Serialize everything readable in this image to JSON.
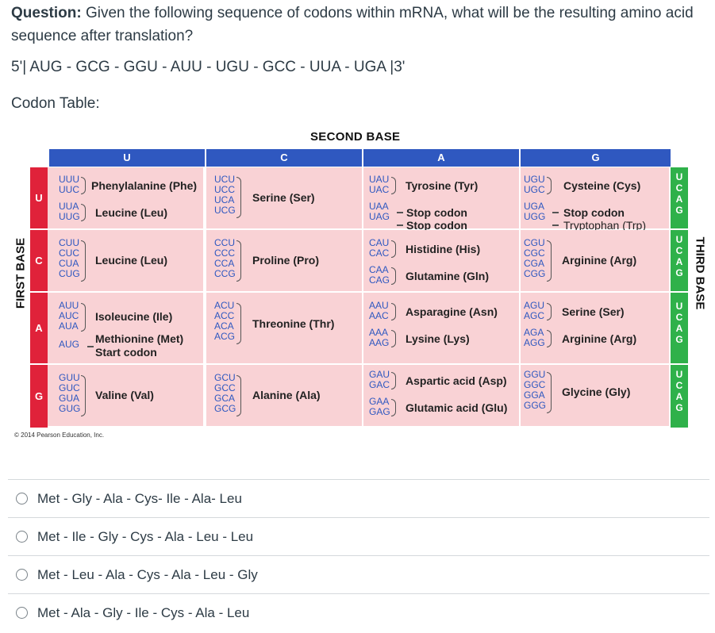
{
  "question": {
    "label": "Question:",
    "text": "Given the following sequence of codons within mRNA, what will be the resulting amino acid sequence after translation?",
    "sequence": "5'| AUG - GCG - GGU - AUU - UGU - GCC - UUA - UGA |3'",
    "codon_table_label": "Codon Table:"
  },
  "table": {
    "second_base_label": "SECOND BASE",
    "first_base_label": "FIRST BASE",
    "third_base_label": "THIRD BASE",
    "copyright": "© 2014 Pearson Education, Inc.",
    "columns": [
      "U",
      "C",
      "A",
      "G"
    ],
    "rows": [
      "U",
      "C",
      "A",
      "G"
    ],
    "third_letters": [
      "U",
      "C",
      "A",
      "G"
    ],
    "cells": {
      "UU": {
        "codons": [
          "UUU",
          "UUC",
          "UUA",
          "UUG"
        ],
        "aa1": "Phenylalanine (Phe)",
        "aa2": "Leucine (Leu)"
      },
      "UC": {
        "codons": [
          "UCU",
          "UCC",
          "UCA",
          "UCG"
        ],
        "aa1": "Serine (Ser)"
      },
      "UA": {
        "codons": [
          "UAU",
          "UAC",
          "UAA",
          "UAG"
        ],
        "aa1": "Tyrosine (Tyr)",
        "aa2": "Stop codon",
        "aa3": "Stop codon"
      },
      "UG": {
        "codons": [
          "UGU",
          "UGC",
          "UGA",
          "UGG"
        ],
        "aa1": "Cysteine (Cys)",
        "aa2": "Stop codon",
        "aa3": "Tryptophan (Trp)"
      },
      "CU": {
        "codons": [
          "CUU",
          "CUC",
          "CUA",
          "CUG"
        ],
        "aa1": "Leucine (Leu)"
      },
      "CC": {
        "codons": [
          "CCU",
          "CCC",
          "CCA",
          "CCG"
        ],
        "aa1": "Proline (Pro)"
      },
      "CA": {
        "codons": [
          "CAU",
          "CAC",
          "CAA",
          "CAG"
        ],
        "aa1": "Histidine (His)",
        "aa2": "Glutamine (Gln)"
      },
      "CG": {
        "codons": [
          "CGU",
          "CGC",
          "CGA",
          "CGG"
        ],
        "aa1": "Arginine (Arg)"
      },
      "AU": {
        "codons": [
          "AUU",
          "AUC",
          "AUA",
          "AUG"
        ],
        "aa1": "Isoleucine (Ile)",
        "aa2": "Methionine (Met)",
        "aa3": "Start codon"
      },
      "AC": {
        "codons": [
          "ACU",
          "ACC",
          "ACA",
          "ACG"
        ],
        "aa1": "Threonine (Thr)"
      },
      "AA": {
        "codons": [
          "AAU",
          "AAC",
          "AAA",
          "AAG"
        ],
        "aa1": "Asparagine (Asn)",
        "aa2": "Lysine (Lys)"
      },
      "AG": {
        "codons": [
          "AGU",
          "AGC",
          "AGA",
          "AGG"
        ],
        "aa1": "Serine (Ser)",
        "aa2": "Arginine (Arg)"
      },
      "GU": {
        "codons": [
          "GUU",
          "GUC",
          "GUA",
          "GUG"
        ],
        "aa1": "Valine (Val)"
      },
      "GC": {
        "codons": [
          "GCU",
          "GCC",
          "GCA",
          "GCG"
        ],
        "aa1": "Alanine (Ala)"
      },
      "GA": {
        "codons": [
          "GAU",
          "GAC",
          "GAA",
          "GAG"
        ],
        "aa1": "Aspartic acid (Asp)",
        "aa2": "Glutamic acid (Glu)"
      },
      "GG": {
        "codons": [
          "GGU",
          "GGC",
          "GGA",
          "GGG"
        ],
        "aa1": "Glycine (Gly)"
      }
    },
    "colors": {
      "header_blue": "#2f58c0",
      "row_red": "#e0223a",
      "third_green": "#2fb14a",
      "cell_pink": "#f9d2d5"
    }
  },
  "answers": [
    {
      "label": "Met - Gly - Ala - Cys- Ile - Ala- Leu"
    },
    {
      "label": "Met - Ile - Gly - Cys - Ala - Leu - Leu"
    },
    {
      "label": "Met - Leu - Ala - Cys - Ala - Leu - Gly"
    },
    {
      "label": "Met - Ala - Gly - Ile - Cys - Ala - Leu"
    }
  ]
}
